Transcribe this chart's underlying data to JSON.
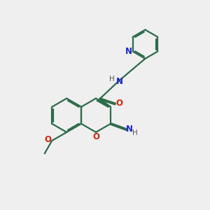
{
  "bg_color": "#efefef",
  "bond_color": "#2d6b4a",
  "nitrogen_color": "#1a28cc",
  "oxygen_color": "#cc2200",
  "carbon_color": "#2d6b4a",
  "h_color": "#555555",
  "line_width": 1.6,
  "figsize": [
    3.0,
    3.0
  ],
  "dpi": 100,
  "xlim": [
    0,
    10
  ],
  "ylim": [
    0,
    10
  ]
}
